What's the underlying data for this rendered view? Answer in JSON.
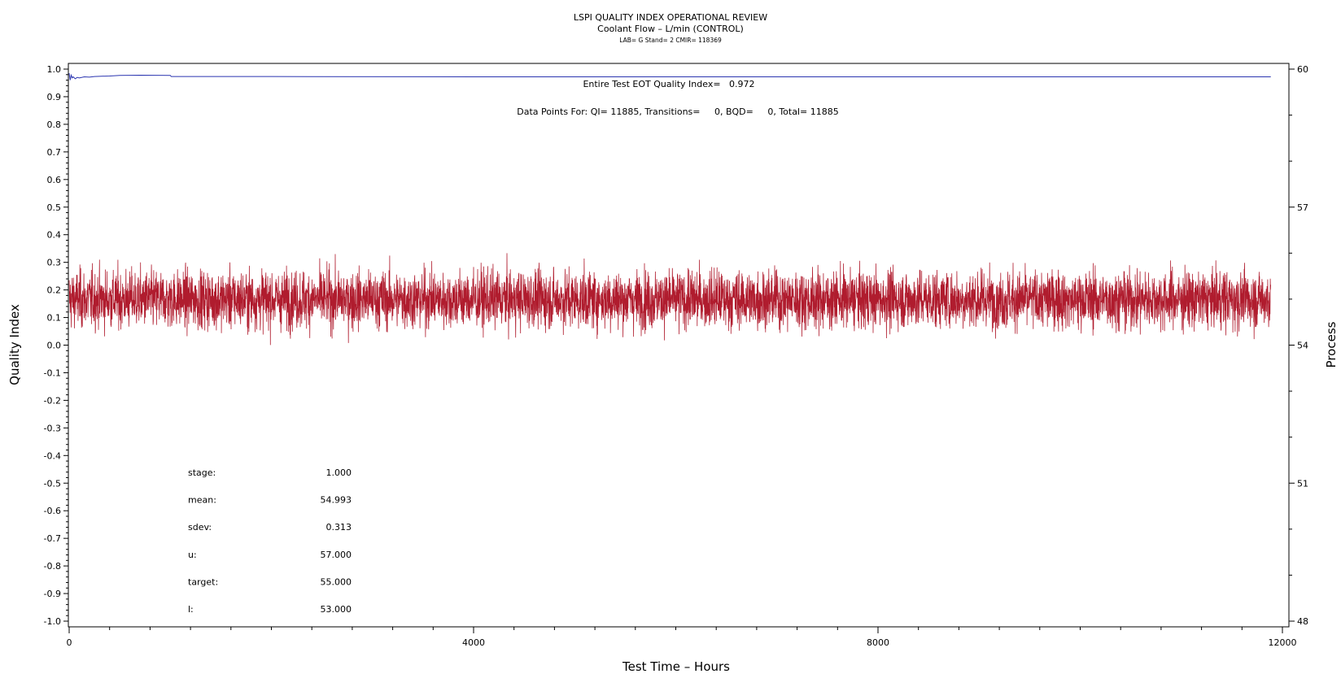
{
  "chart_data": {
    "type": "line",
    "title": "LSPI QUALITY INDEX OPERATIONAL REVIEW",
    "subtitle": "Coolant Flow – L/min (CONTROL)",
    "subtitle2": "LAB= G Stand= 2 CMIR= 118369",
    "xlabel": "Test Time – Hours",
    "ylabel": "Quality Index",
    "ylabel_right": "Process",
    "xlim": [
      0,
      12000
    ],
    "ylim": [
      -1.0,
      1.0
    ],
    "ylim_right": [
      48,
      60
    ],
    "x_ticks": [
      "0",
      "4000",
      "8000",
      "12000"
    ],
    "y_ticks": [
      "1.0",
      "0.9",
      "0.8",
      "0.7",
      "0.6",
      "0.5",
      "0.4",
      "0.3",
      "0.2",
      "0.1",
      "0.0",
      "-0.1",
      "-0.2",
      "-0.3",
      "-0.4",
      "-0.5",
      "-0.6",
      "-0.7",
      "-0.8",
      "-0.9",
      "-1.0"
    ],
    "y_ticks_right": [
      "60",
      "57",
      "54",
      "51",
      "48"
    ],
    "grid": false,
    "annotations": {
      "eot": "Entire Test EOT Quality Index=   0.972",
      "points": "Data Points For: QI= 11885, Transitions=     0, BQD=     0, Total= 11885"
    },
    "stats": [
      {
        "label": "stage:",
        "value": "1.000"
      },
      {
        "label": "mean:",
        "value": "54.993"
      },
      {
        "label": "sdev:",
        "value": "0.313"
      },
      {
        "label": "u:",
        "value": "57.000"
      },
      {
        "label": "target:",
        "value": "55.000"
      },
      {
        "label": "l:",
        "value": "53.000"
      }
    ],
    "series": [
      {
        "color": "#2b35b0",
        "axis": "left",
        "x": [
          0,
          10,
          20,
          30,
          40,
          60,
          80,
          100,
          150,
          200,
          250,
          300,
          400,
          500,
          700,
          1000,
          1010,
          2000,
          4000,
          6000,
          8000,
          10000,
          11885
        ],
        "values": [
          0.985,
          0.96,
          0.978,
          0.968,
          0.972,
          0.965,
          0.97,
          0.968,
          0.972,
          0.971,
          0.973,
          0.974,
          0.975,
          0.977,
          0.978,
          0.977,
          0.973,
          0.973,
          0.972,
          0.972,
          0.972,
          0.972,
          0.972
        ]
      },
      {
        "color": "#b01c2e",
        "axis": "right",
        "n_points": 11885,
        "x_start": 0,
        "x_end": 11885,
        "mean": 54.993,
        "sdev": 0.313
      }
    ],
    "colors": {
      "qi_line": "#2b35b0",
      "process_line": "#b01c2e",
      "axis": "#000000"
    }
  }
}
